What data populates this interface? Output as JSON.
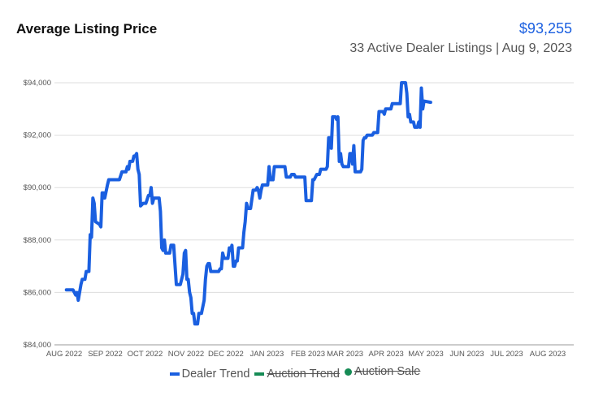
{
  "header": {
    "title": "Average Listing Price",
    "price": "$93,255",
    "subtitle": "33 Active Dealer Listings | Aug 9, 2023"
  },
  "colors": {
    "dealer": "#1a5fe0",
    "auction_trend": "#168b55",
    "auction_sale": "#168b55",
    "grid": "#dddddd"
  },
  "chart_data": {
    "type": "line",
    "title": "Average Listing Price",
    "xlabel": "",
    "ylabel": "",
    "x_tick_labels": [
      "AUG 2022",
      "SEP 2022",
      "OCT 2022",
      "NOV 2022",
      "DEC 2022",
      "JAN 2023",
      "FEB 2023",
      "MAR 2023",
      "APR 2023",
      "MAY 2023",
      "JUN 2023",
      "JUL 2023",
      "AUG 2023"
    ],
    "y_tick_labels": [
      "$84,000",
      "$86,000",
      "$88,000",
      "$90,000",
      "$92,000",
      "$94,000"
    ],
    "y_ticks": [
      84000,
      86000,
      88000,
      90000,
      92000,
      94000
    ],
    "ylim": [
      84000,
      94000
    ],
    "xlim": [
      "2022-08-01",
      "2023-08-28"
    ],
    "grid": true,
    "legend": {
      "position": "bottom",
      "items": [
        {
          "name": "Dealer Trend",
          "marker": "line",
          "color": "#1a5fe0",
          "hidden": false
        },
        {
          "name": "Auction Trend",
          "marker": "line",
          "color": "#168b55",
          "hidden": true
        },
        {
          "name": "Auction Sale",
          "marker": "dot",
          "color": "#168b55",
          "hidden": true
        }
      ]
    },
    "series": [
      {
        "name": "Dealer Trend",
        "color": "#1a5fe0",
        "points": [
          [
            "2022-08-10",
            86100
          ],
          [
            "2022-08-15",
            86100
          ],
          [
            "2022-08-17",
            85900
          ],
          [
            "2022-08-18",
            86000
          ],
          [
            "2022-08-19",
            85700
          ],
          [
            "2022-08-21",
            86300
          ],
          [
            "2022-08-22",
            86500
          ],
          [
            "2022-08-24",
            86500
          ],
          [
            "2022-08-25",
            86800
          ],
          [
            "2022-08-27",
            86800
          ],
          [
            "2022-08-28",
            88200
          ],
          [
            "2022-08-29",
            88100
          ],
          [
            "2022-08-30",
            89600
          ],
          [
            "2022-08-31",
            89400
          ],
          [
            "2022-09-01",
            88700
          ],
          [
            "2022-09-04",
            88600
          ],
          [
            "2022-09-05",
            88500
          ],
          [
            "2022-09-06",
            89800
          ],
          [
            "2022-09-07",
            89800
          ],
          [
            "2022-09-08",
            89600
          ],
          [
            "2022-09-10",
            90100
          ],
          [
            "2022-09-11",
            90300
          ],
          [
            "2022-09-19",
            90300
          ],
          [
            "2022-09-21",
            90600
          ],
          [
            "2022-09-24",
            90600
          ],
          [
            "2022-09-25",
            90800
          ],
          [
            "2022-09-26",
            90700
          ],
          [
            "2022-09-27",
            91000
          ],
          [
            "2022-09-29",
            91000
          ],
          [
            "2022-09-30",
            91200
          ],
          [
            "2022-10-01",
            91200
          ],
          [
            "2022-10-02",
            91300
          ],
          [
            "2022-10-03",
            90700
          ],
          [
            "2022-10-04",
            90500
          ],
          [
            "2022-10-05",
            89300
          ],
          [
            "2022-10-07",
            89400
          ],
          [
            "2022-10-09",
            89400
          ],
          [
            "2022-10-11",
            89700
          ],
          [
            "2022-10-12",
            89700
          ],
          [
            "2022-10-13",
            90000
          ],
          [
            "2022-10-14",
            89400
          ],
          [
            "2022-10-15",
            89600
          ],
          [
            "2022-10-19",
            89600
          ],
          [
            "2022-10-20",
            89100
          ],
          [
            "2022-10-21",
            87700
          ],
          [
            "2022-10-22",
            87600
          ],
          [
            "2022-10-23",
            88000
          ],
          [
            "2022-10-24",
            87500
          ],
          [
            "2022-10-27",
            87500
          ],
          [
            "2022-10-28",
            87800
          ],
          [
            "2022-10-30",
            87800
          ],
          [
            "2022-11-01",
            86300
          ],
          [
            "2022-11-04",
            86300
          ],
          [
            "2022-11-06",
            86700
          ],
          [
            "2022-11-07",
            87500
          ],
          [
            "2022-11-08",
            87600
          ],
          [
            "2022-11-09",
            86500
          ],
          [
            "2022-11-10",
            86500
          ],
          [
            "2022-11-11",
            86000
          ],
          [
            "2022-11-12",
            85800
          ],
          [
            "2022-11-13",
            85200
          ],
          [
            "2022-11-14",
            85200
          ],
          [
            "2022-11-15",
            84800
          ],
          [
            "2022-11-17",
            84800
          ],
          [
            "2022-11-18",
            85200
          ],
          [
            "2022-11-20",
            85200
          ],
          [
            "2022-11-22",
            85700
          ],
          [
            "2022-11-23",
            86500
          ],
          [
            "2022-11-24",
            87000
          ],
          [
            "2022-11-25",
            87100
          ],
          [
            "2022-11-26",
            87100
          ],
          [
            "2022-11-27",
            86800
          ],
          [
            "2022-12-03",
            86800
          ],
          [
            "2022-12-04",
            86900
          ],
          [
            "2022-12-05",
            86900
          ],
          [
            "2022-12-06",
            87500
          ],
          [
            "2022-12-07",
            87300
          ],
          [
            "2022-12-10",
            87300
          ],
          [
            "2022-12-11",
            87700
          ],
          [
            "2022-12-12",
            87600
          ],
          [
            "2022-12-13",
            87800
          ],
          [
            "2022-12-14",
            87000
          ],
          [
            "2022-12-15",
            87000
          ],
          [
            "2022-12-16",
            87200
          ],
          [
            "2022-12-17",
            87200
          ],
          [
            "2022-12-18",
            87700
          ],
          [
            "2022-12-21",
            87700
          ],
          [
            "2022-12-22",
            88300
          ],
          [
            "2022-12-23",
            88700
          ],
          [
            "2022-12-24",
            89400
          ],
          [
            "2022-12-25",
            89200
          ],
          [
            "2022-12-27",
            89200
          ],
          [
            "2022-12-29",
            89900
          ],
          [
            "2022-12-31",
            89900
          ],
          [
            "2023-01-01",
            90000
          ],
          [
            "2023-01-02",
            89900
          ],
          [
            "2023-01-03",
            89600
          ],
          [
            "2023-01-04",
            89900
          ],
          [
            "2023-01-05",
            90100
          ],
          [
            "2023-01-09",
            90100
          ],
          [
            "2023-01-10",
            90800
          ],
          [
            "2023-01-11",
            90300
          ],
          [
            "2023-01-13",
            90300
          ],
          [
            "2023-01-14",
            90800
          ],
          [
            "2023-01-22",
            90800
          ],
          [
            "2023-01-23",
            90400
          ],
          [
            "2023-01-26",
            90400
          ],
          [
            "2023-01-27",
            90500
          ],
          [
            "2023-01-29",
            90500
          ],
          [
            "2023-01-30",
            90400
          ],
          [
            "2023-02-06",
            90400
          ],
          [
            "2023-02-07",
            89500
          ],
          [
            "2023-02-11",
            89500
          ],
          [
            "2023-02-12",
            90300
          ],
          [
            "2023-02-13",
            90300
          ],
          [
            "2023-02-15",
            90500
          ],
          [
            "2023-02-17",
            90500
          ],
          [
            "2023-02-18",
            90700
          ],
          [
            "2023-02-22",
            90700
          ],
          [
            "2023-02-23",
            90800
          ],
          [
            "2023-02-24",
            91900
          ],
          [
            "2023-02-25",
            91900
          ],
          [
            "2023-02-26",
            91500
          ],
          [
            "2023-02-27",
            92700
          ],
          [
            "2023-03-01",
            92700
          ],
          [
            "2023-03-02",
            92600
          ],
          [
            "2023-03-03",
            92700
          ],
          [
            "2023-03-04",
            91000
          ],
          [
            "2023-03-05",
            91300
          ],
          [
            "2023-03-06",
            90900
          ],
          [
            "2023-03-07",
            90800
          ],
          [
            "2023-03-11",
            90800
          ],
          [
            "2023-03-12",
            91300
          ],
          [
            "2023-03-13",
            91300
          ],
          [
            "2023-03-14",
            90900
          ],
          [
            "2023-03-15",
            91600
          ],
          [
            "2023-03-16",
            90600
          ],
          [
            "2023-03-20",
            90600
          ],
          [
            "2023-03-21",
            90700
          ],
          [
            "2023-03-22",
            91800
          ],
          [
            "2023-03-23",
            91900
          ],
          [
            "2023-03-24",
            91900
          ],
          [
            "2023-03-25",
            92000
          ],
          [
            "2023-03-29",
            92000
          ],
          [
            "2023-03-30",
            92100
          ],
          [
            "2023-04-02",
            92100
          ],
          [
            "2023-04-03",
            92900
          ],
          [
            "2023-04-06",
            92900
          ],
          [
            "2023-04-07",
            92800
          ],
          [
            "2023-04-08",
            93000
          ],
          [
            "2023-04-12",
            93000
          ],
          [
            "2023-04-13",
            93200
          ],
          [
            "2023-04-19",
            93200
          ],
          [
            "2023-04-20",
            94000
          ],
          [
            "2023-04-23",
            94000
          ],
          [
            "2023-04-24",
            93600
          ],
          [
            "2023-04-25",
            92700
          ],
          [
            "2023-04-26",
            92800
          ],
          [
            "2023-04-27",
            92500
          ],
          [
            "2023-04-29",
            92500
          ],
          [
            "2023-04-30",
            92300
          ],
          [
            "2023-05-02",
            92300
          ],
          [
            "2023-05-03",
            92500
          ],
          [
            "2023-05-04",
            92300
          ],
          [
            "2023-05-05",
            93800
          ],
          [
            "2023-05-06",
            93000
          ],
          [
            "2023-05-07",
            93300
          ],
          [
            "2023-05-12",
            93255
          ]
        ]
      }
    ]
  }
}
